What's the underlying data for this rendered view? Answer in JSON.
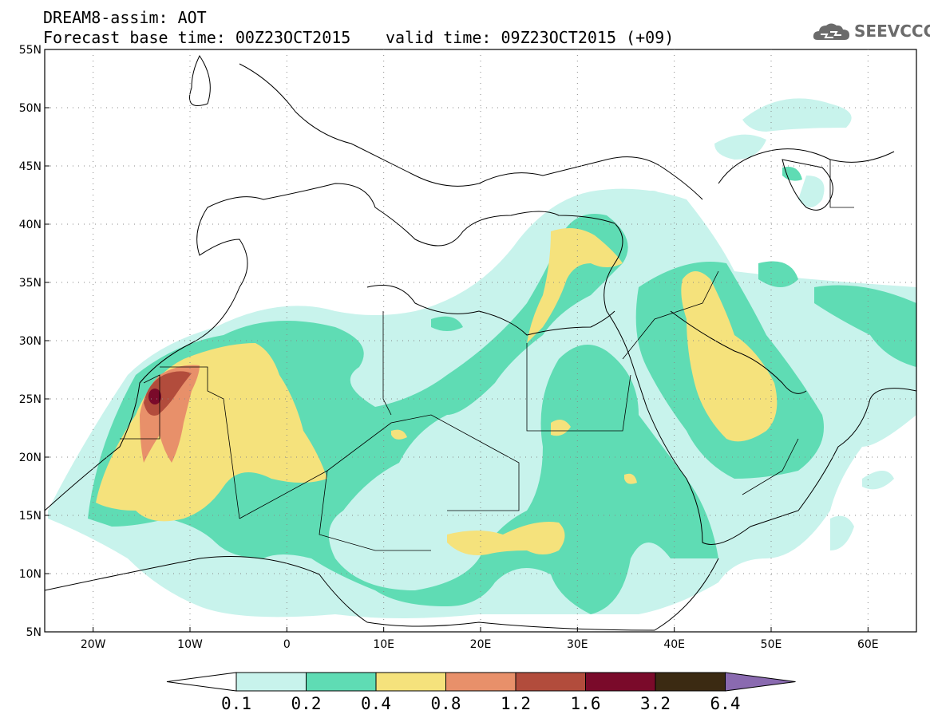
{
  "header": {
    "title": "DREAM8-assim: AOT",
    "base_time": "Forecast base time: 00Z23OCT2015",
    "valid_time": "valid time: 09Z23OCT2015 (+09)",
    "logo_text": "SEEVCCC"
  },
  "map": {
    "lat_labels": [
      "55N",
      "50N",
      "45N",
      "40N",
      "35N",
      "30N",
      "25N",
      "20N",
      "15N",
      "10N",
      "5N"
    ],
    "lon_labels": [
      "20W",
      "10W",
      "0",
      "10E",
      "20E",
      "30E",
      "40E",
      "50E",
      "60E"
    ],
    "lat_range": [
      5,
      55
    ],
    "lon_range": [
      -25,
      65
    ]
  },
  "legend": {
    "levels": [
      "0.1",
      "0.2",
      "0.4",
      "0.8",
      "1.2",
      "1.6",
      "3.2",
      "6.4"
    ],
    "colors": [
      "#ffffff",
      "#c8f3ec",
      "#5fdcb4",
      "#f5e27c",
      "#e8906a",
      "#b24c3c",
      "#7a0a2a",
      "#3b2a12",
      "#8a6ab0"
    ]
  }
}
